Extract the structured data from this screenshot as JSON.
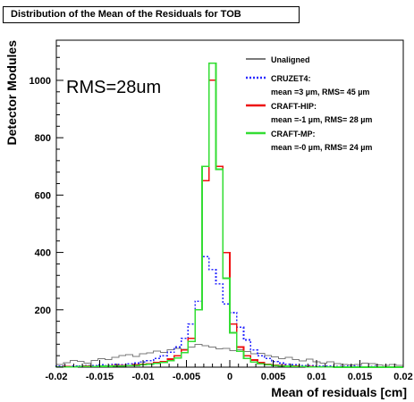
{
  "chart_data": {
    "type": "line",
    "title": "Distribution of the Mean of the Residuals for TOB",
    "xlabel": "Mean of residuals [cm]",
    "ylabel": "Detector Modules",
    "xlim": [
      -0.02,
      0.02
    ],
    "ylim": [
      0,
      1140
    ],
    "x_ticks": [
      -0.02,
      -0.015,
      -0.01,
      -0.005,
      0,
      0.005,
      0.01,
      0.015,
      0.02
    ],
    "x_tick_labels": [
      "-0.02",
      "-0.015",
      "-0.01",
      "-0.005",
      "0",
      "0.005",
      "0.01",
      "0.015",
      "0.02"
    ],
    "y_ticks": [
      200,
      400,
      600,
      800,
      1000
    ],
    "y_tick_labels": [
      "200",
      "400",
      "600",
      "800",
      "1000"
    ],
    "annotation": "RMS=28um",
    "legend_position": "top-right",
    "bins_start": -0.02,
    "bins_width": 0.0008,
    "series": [
      {
        "name": "Unaligned",
        "detail": "",
        "color": "#7a7a7a",
        "dash": "none",
        "width": 1,
        "values": [
          10,
          16,
          24,
          20,
          14,
          24,
          30,
          26,
          34,
          40,
          44,
          38,
          46,
          50,
          56,
          52,
          60,
          66,
          62,
          70,
          80,
          74,
          70,
          64,
          66,
          58,
          60,
          54,
          46,
          48,
          40,
          36,
          30,
          34,
          26,
          22,
          28,
          18,
          14,
          18,
          12,
          10,
          8,
          10,
          14,
          12,
          8,
          6,
          10,
          6
        ]
      },
      {
        "name": "CRUZET4:",
        "detail": "mean =3 µm, RMS= 45 µm",
        "color": "#2a2aff",
        "dash": "2,2",
        "width": 1.6,
        "values": [
          4,
          2,
          4,
          3,
          6,
          5,
          8,
          6,
          10,
          9,
          12,
          14,
          18,
          22,
          30,
          40,
          52,
          70,
          100,
          150,
          230,
          385,
          340,
          290,
          220,
          190,
          140,
          95,
          60,
          40,
          30,
          20,
          14,
          10,
          8,
          6,
          5,
          4,
          4,
          3,
          2,
          2,
          3,
          2,
          1,
          2,
          1,
          1,
          1,
          0
        ]
      },
      {
        "name": "CRAFT-HIP:",
        "detail": "mean =-1 µm, RMS= 28 µm",
        "color": "#ee1111",
        "dash": "none",
        "width": 1.6,
        "values": [
          1,
          2,
          1,
          2,
          3,
          2,
          3,
          4,
          5,
          5,
          6,
          8,
          10,
          12,
          16,
          20,
          28,
          40,
          60,
          100,
          200,
          650,
          1000,
          700,
          400,
          150,
          70,
          40,
          25,
          16,
          10,
          7,
          5,
          4,
          3,
          2,
          2,
          1,
          1,
          1,
          1,
          0,
          1,
          0,
          0,
          0,
          0,
          0,
          0,
          0
        ]
      },
      {
        "name": "CRAFT-MP:",
        "detail": "mean =-0 µm, RMS= 24 µm",
        "color": "#33dd33",
        "dash": "none",
        "width": 1.6,
        "values": [
          1,
          1,
          1,
          2,
          2,
          2,
          3,
          3,
          4,
          4,
          5,
          6,
          8,
          10,
          13,
          16,
          22,
          32,
          50,
          90,
          200,
          700,
          1060,
          690,
          310,
          120,
          55,
          30,
          18,
          12,
          8,
          6,
          4,
          3,
          2,
          2,
          1,
          1,
          1,
          1,
          0,
          0,
          0,
          0,
          0,
          0,
          0,
          0,
          0,
          0
        ]
      }
    ]
  }
}
